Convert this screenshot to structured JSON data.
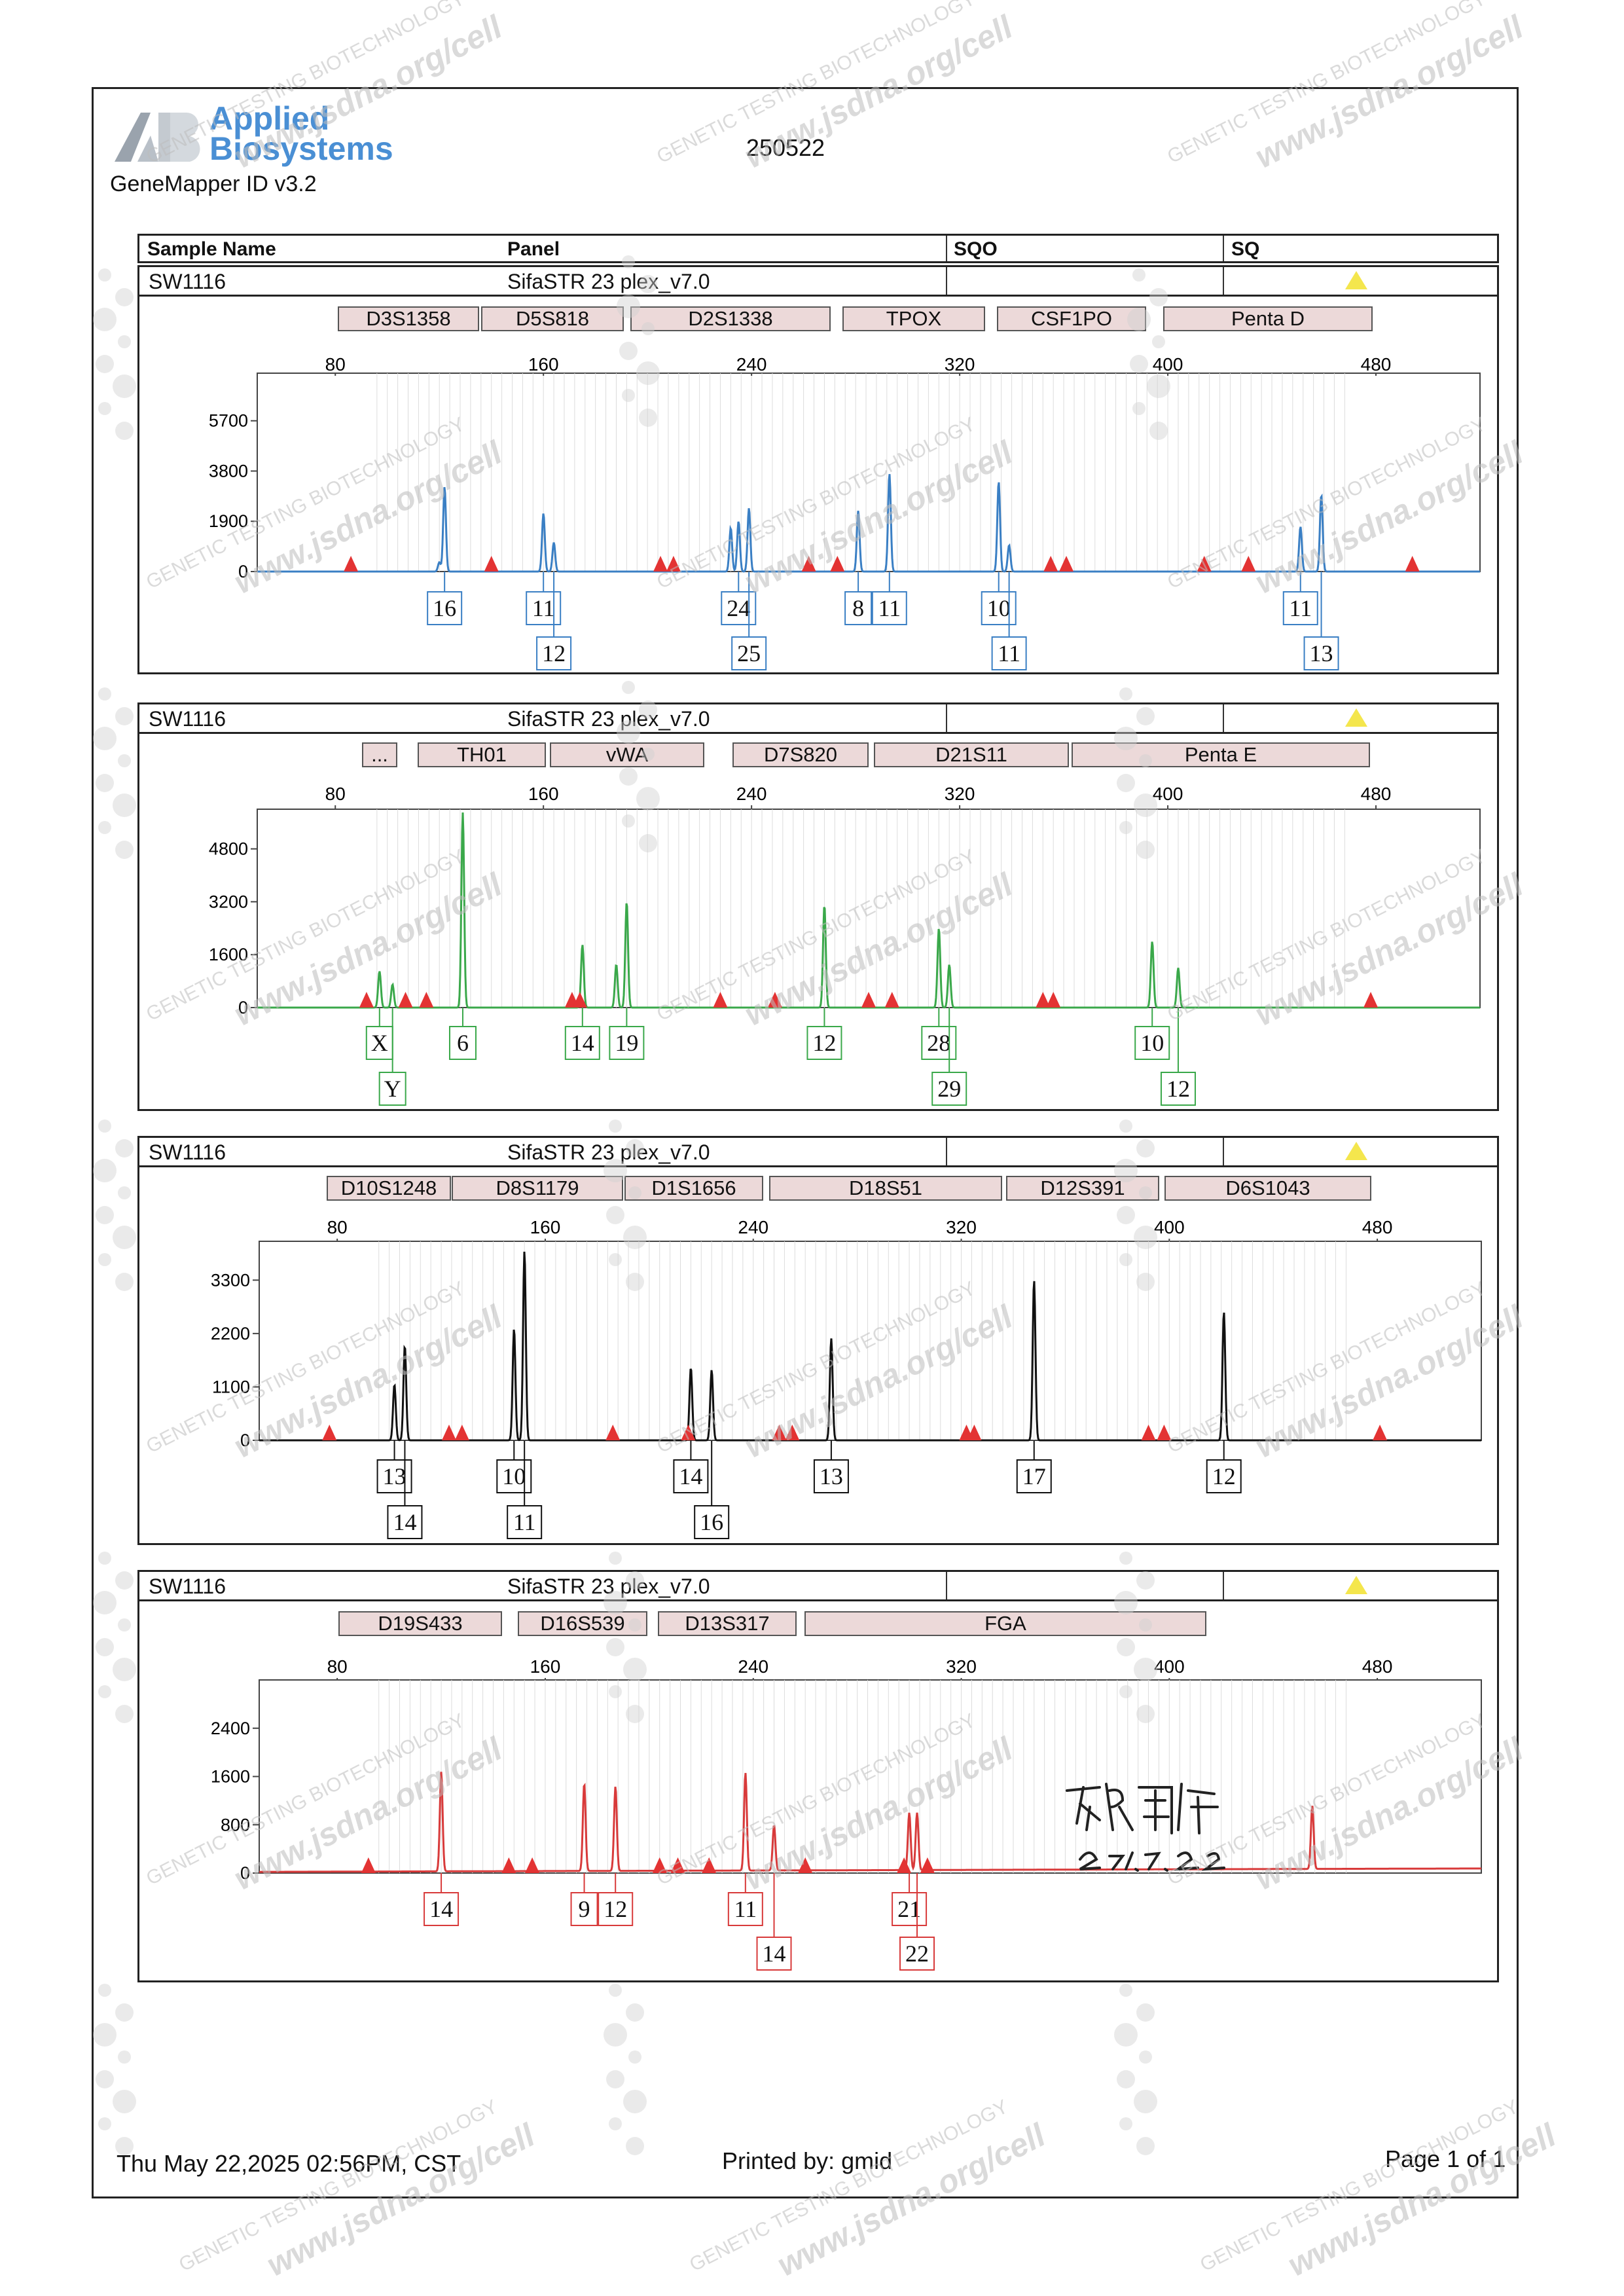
{
  "logo": {
    "line1": "Applied",
    "line2": "Biosystems"
  },
  "app_version": "GeneMapper ID v3.2",
  "run_name": "250522",
  "sample_header": {
    "sample_name": "Sample Name",
    "panel": "Panel",
    "sqo": "SQO",
    "sq": "SQ"
  },
  "colors": {
    "blue": "#3a7fc4",
    "green": "#3aa84a",
    "black": "#111111",
    "red": "#d83a3a",
    "marker_bg": "#ecd9d9",
    "size_std": "#e33333",
    "flag": "#f4e64d"
  },
  "footer": {
    "datetime": "Thu May 22,2025 02:56PM, CST",
    "printed_by": "Printed by: gmid",
    "page": "Page 1 of 1"
  },
  "watermark": {
    "line1": "GENETIC TESTING BIOTECHNOLOGY",
    "line2": "www.jsdna.org/cell"
  },
  "signature": {
    "name": "石国辉",
    "date": "2025.5.22"
  },
  "chart_data": [
    {
      "type": "line",
      "dye": "blue",
      "sample": "SW1116",
      "panel": "SifaSTR 23 plex_v7.0",
      "markers": [
        "D3S1358",
        "D5S818",
        "D2S1338",
        "TPOX",
        "CSF1PO",
        "Penta D"
      ],
      "x_ticks": [
        80,
        160,
        240,
        320,
        400,
        480
      ],
      "xlim": [
        50,
        520
      ],
      "y_ticks": [
        0,
        1900,
        3800,
        5700
      ],
      "ylim": [
        0,
        7500
      ],
      "peaks": [
        [
          120,
          350
        ],
        [
          122,
          3200
        ],
        [
          160,
          2200
        ],
        [
          164,
          1100
        ],
        [
          232,
          1650
        ],
        [
          235,
          1900
        ],
        [
          239,
          2400
        ],
        [
          281,
          2300
        ],
        [
          293,
          3700
        ],
        [
          335,
          3400
        ],
        [
          339,
          1000
        ],
        [
          451,
          1700
        ],
        [
          459,
          2900
        ]
      ],
      "size_standard": [
        86,
        140,
        205,
        210,
        262,
        273,
        355,
        361,
        414,
        431,
        494
      ],
      "allele_calls": [
        {
          "x": 122,
          "label": "16",
          "row": 0
        },
        {
          "x": 160,
          "label": "11",
          "row": 0
        },
        {
          "x": 164,
          "label": "12",
          "row": 1
        },
        {
          "x": 235,
          "label": "24",
          "row": 0
        },
        {
          "x": 239,
          "label": "25",
          "row": 1
        },
        {
          "x": 281,
          "label": "8",
          "row": 0
        },
        {
          "x": 293,
          "label": "11",
          "row": 0
        },
        {
          "x": 335,
          "label": "10",
          "row": 0
        },
        {
          "x": 339,
          "label": "11",
          "row": 1
        },
        {
          "x": 451,
          "label": "11",
          "row": 0
        },
        {
          "x": 459,
          "label": "13",
          "row": 1
        }
      ]
    },
    {
      "type": "line",
      "dye": "green",
      "sample": "SW1116",
      "panel": "SifaSTR 23 plex_v7.0",
      "markers": [
        "...",
        "TH01",
        "vWA",
        "D7S820",
        "D21S11",
        "Penta E"
      ],
      "x_ticks": [
        80,
        160,
        240,
        320,
        400,
        480
      ],
      "xlim": [
        50,
        520
      ],
      "y_ticks": [
        0,
        1600,
        3200,
        4800
      ],
      "ylim": [
        0,
        6000
      ],
      "peaks": [
        [
          97,
          1100
        ],
        [
          102,
          700
        ],
        [
          129,
          5900
        ],
        [
          175,
          1900
        ],
        [
          188,
          1300
        ],
        [
          192,
          3200
        ],
        [
          268,
          3100
        ],
        [
          312,
          2400
        ],
        [
          316,
          1300
        ],
        [
          394,
          2000
        ],
        [
          404,
          1200
        ]
      ],
      "size_standard": [
        92,
        107,
        115,
        171,
        174,
        228,
        249,
        285,
        294,
        352,
        356,
        478
      ],
      "allele_calls": [
        {
          "x": 97,
          "label": "X",
          "row": 0
        },
        {
          "x": 102,
          "label": "Y",
          "row": 1
        },
        {
          "x": 129,
          "label": "6",
          "row": 0
        },
        {
          "x": 175,
          "label": "14",
          "row": 0
        },
        {
          "x": 192,
          "label": "19",
          "row": 0
        },
        {
          "x": 268,
          "label": "12",
          "row": 0
        },
        {
          "x": 312,
          "label": "28",
          "row": 0
        },
        {
          "x": 316,
          "label": "29",
          "row": 1
        },
        {
          "x": 394,
          "label": "10",
          "row": 0
        },
        {
          "x": 404,
          "label": "12",
          "row": 1
        }
      ]
    },
    {
      "type": "line",
      "dye": "black",
      "sample": "SW1116",
      "panel": "SifaSTR 23 plex_v7.0",
      "markers": [
        "D10S1248",
        "D8S1179",
        "D1S1656",
        "D18S51",
        "D12S391",
        "D6S1043"
      ],
      "x_ticks": [
        80,
        160,
        240,
        320,
        400,
        480
      ],
      "xlim": [
        50,
        520
      ],
      "y_ticks": [
        0,
        1100,
        2200,
        3300
      ],
      "ylim": [
        0,
        4100
      ],
      "peaks": [
        [
          102,
          1150
        ],
        [
          106,
          1950
        ],
        [
          148,
          2300
        ],
        [
          152,
          3900
        ],
        [
          216,
          1500
        ],
        [
          224,
          1450
        ],
        [
          270,
          2100
        ],
        [
          348,
          3300
        ],
        [
          421,
          2650
        ]
      ],
      "size_standard": [
        77,
        123,
        128,
        186,
        215,
        250,
        255,
        322,
        325,
        392,
        398,
        481
      ],
      "allele_calls": [
        {
          "x": 102,
          "label": "13",
          "row": 0
        },
        {
          "x": 106,
          "label": "14",
          "row": 1
        },
        {
          "x": 148,
          "label": "10",
          "row": 0
        },
        {
          "x": 152,
          "label": "11",
          "row": 1
        },
        {
          "x": 216,
          "label": "14",
          "row": 0
        },
        {
          "x": 224,
          "label": "16",
          "row": 1
        },
        {
          "x": 270,
          "label": "13",
          "row": 0
        },
        {
          "x": 348,
          "label": "17",
          "row": 0
        },
        {
          "x": 421,
          "label": "12",
          "row": 0
        }
      ]
    },
    {
      "type": "line",
      "dye": "red",
      "sample": "SW1116",
      "panel": "SifaSTR 23 plex_v7.0",
      "markers": [
        "D19S433",
        "D16S539",
        "D13S317",
        "FGA"
      ],
      "x_ticks": [
        80,
        160,
        240,
        320,
        400,
        480
      ],
      "xlim": [
        50,
        520
      ],
      "y_ticks": [
        0,
        800,
        1600,
        2400
      ],
      "ylim": [
        0,
        3200
      ],
      "peaks": [
        [
          120,
          1650
        ],
        [
          175,
          1450
        ],
        [
          187,
          1400
        ],
        [
          237,
          1620
        ],
        [
          248,
          750
        ],
        [
          300,
          950
        ],
        [
          303,
          950
        ],
        [
          455,
          1050
        ]
      ],
      "size_standard": [
        92,
        146,
        155,
        204,
        211,
        223,
        260,
        298,
        307
      ],
      "allele_calls": [
        {
          "x": 120,
          "label": "14",
          "row": 0
        },
        {
          "x": 175,
          "label": "9",
          "row": 0
        },
        {
          "x": 187,
          "label": "12",
          "row": 0
        },
        {
          "x": 237,
          "label": "11",
          "row": 0
        },
        {
          "x": 248,
          "label": "14",
          "row": 1
        },
        {
          "x": 300,
          "label": "21",
          "row": 0
        },
        {
          "x": 303,
          "label": "22",
          "row": 1
        }
      ]
    }
  ]
}
